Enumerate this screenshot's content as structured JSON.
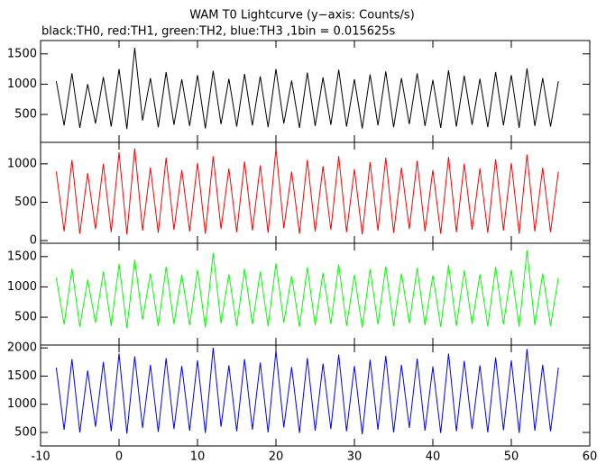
{
  "chart_data": [
    {
      "type": "line",
      "title": "WAM T0 Lightcurve (y−axis: Counts/s)",
      "subtitle": "black:TH0, red:TH1, green:TH2, blue:TH3 ,1bin = 0.015625s",
      "xlim": [
        -10,
        60
      ],
      "ylim": [
        40,
        1720
      ],
      "yticks": [
        500,
        1000,
        1500
      ],
      "x": [
        -8,
        -7,
        -6,
        -5,
        -4,
        -3,
        -2,
        -1,
        0,
        1,
        2,
        3,
        4,
        5,
        6,
        7,
        8,
        9,
        10,
        11,
        12,
        13,
        14,
        15,
        16,
        17,
        18,
        19,
        20,
        21,
        22,
        23,
        24,
        25,
        26,
        27,
        28,
        29,
        30,
        31,
        32,
        33,
        34,
        35,
        36,
        37,
        38,
        39,
        40,
        41,
        42,
        43,
        44,
        45,
        46,
        47,
        48,
        49,
        50,
        51,
        52,
        53,
        54,
        55,
        56
      ],
      "series": [
        {
          "name": "TH0",
          "color": "#000000",
          "values": [
            1050,
            320,
            1180,
            280,
            1000,
            350,
            1120,
            300,
            1250,
            260,
            1600,
            400,
            1100,
            290,
            1200,
            330,
            1080,
            310,
            1150,
            270,
            1220,
            340,
            1090,
            300,
            1170,
            320,
            1130,
            290,
            1250,
            350,
            1060,
            280,
            1190,
            310,
            1110,
            330,
            1240,
            300,
            1080,
            270,
            1160,
            320,
            1210,
            290,
            1100,
            340,
            1180,
            310,
            1070,
            280,
            1230,
            300,
            1140,
            330,
            1090,
            290,
            1200,
            320,
            1150,
            280,
            1260,
            310,
            1100,
            300,
            1050
          ]
        }
      ]
    },
    {
      "type": "line",
      "xlim": [
        -10,
        60
      ],
      "ylim": [
        -35,
        1280
      ],
      "yticks": [
        0,
        500,
        1000
      ],
      "x": [
        -8,
        -7,
        -6,
        -5,
        -4,
        -3,
        -2,
        -1,
        0,
        1,
        2,
        3,
        4,
        5,
        6,
        7,
        8,
        9,
        10,
        11,
        12,
        13,
        14,
        15,
        16,
        17,
        18,
        19,
        20,
        21,
        22,
        23,
        24,
        25,
        26,
        27,
        28,
        29,
        30,
        31,
        32,
        33,
        34,
        35,
        36,
        37,
        38,
        39,
        40,
        41,
        42,
        43,
        44,
        45,
        46,
        47,
        48,
        49,
        50,
        51,
        52,
        53,
        54,
        55,
        56
      ],
      "series": [
        {
          "name": "TH1",
          "color": "#ff0000",
          "values": [
            900,
            120,
            1050,
            90,
            880,
            150,
            1000,
            110,
            1150,
            80,
            1200,
            130,
            950,
            100,
            1080,
            140,
            920,
            120,
            1010,
            90,
            1100,
            150,
            940,
            110,
            1030,
            130,
            980,
            100,
            1200,
            160,
            900,
            90,
            1050,
            120,
            970,
            140,
            1100,
            110,
            930,
            80,
            1020,
            130,
            1080,
            100,
            950,
            150,
            1040,
            120,
            920,
            90,
            1090,
            110,
            1000,
            140,
            940,
            100,
            1060,
            130,
            1010,
            90,
            1120,
            120,
            950,
            110,
            900
          ]
        }
      ]
    },
    {
      "type": "line",
      "xlim": [
        -10,
        60
      ],
      "ylim": [
        40,
        1720
      ],
      "yticks": [
        500,
        1000,
        1500
      ],
      "x": [
        -8,
        -7,
        -6,
        -5,
        -4,
        -3,
        -2,
        -1,
        0,
        1,
        2,
        3,
        4,
        5,
        6,
        7,
        8,
        9,
        10,
        11,
        12,
        13,
        14,
        15,
        16,
        17,
        18,
        19,
        20,
        21,
        22,
        23,
        24,
        25,
        26,
        27,
        28,
        29,
        30,
        31,
        32,
        33,
        34,
        35,
        36,
        37,
        38,
        39,
        40,
        41,
        42,
        43,
        44,
        45,
        46,
        47,
        48,
        49,
        50,
        51,
        52,
        53,
        54,
        55,
        56
      ],
      "series": [
        {
          "name": "TH2",
          "color": "#00ff00",
          "values": [
            1150,
            380,
            1300,
            340,
            1120,
            410,
            1250,
            360,
            1380,
            320,
            1450,
            460,
            1220,
            350,
            1330,
            390,
            1200,
            370,
            1280,
            330,
            1560,
            400,
            1210,
            360,
            1300,
            380,
            1250,
            350,
            1390,
            410,
            1180,
            340,
            1320,
            370,
            1230,
            390,
            1370,
            360,
            1200,
            330,
            1290,
            380,
            1340,
            350,
            1220,
            400,
            1310,
            370,
            1190,
            340,
            1360,
            360,
            1270,
            390,
            1210,
            350,
            1330,
            380,
            1280,
            340,
            1600,
            370,
            1220,
            360,
            1150
          ]
        }
      ]
    },
    {
      "type": "line",
      "xlim": [
        -10,
        60
      ],
      "xticks": [
        -10,
        0,
        10,
        20,
        30,
        40,
        50,
        60
      ],
      "ylim": [
        260,
        2050
      ],
      "yticks": [
        500,
        1000,
        1500,
        2000
      ],
      "x": [
        -8,
        -7,
        -6,
        -5,
        -4,
        -3,
        -2,
        -1,
        0,
        1,
        2,
        3,
        4,
        5,
        6,
        7,
        8,
        9,
        10,
        11,
        12,
        13,
        14,
        15,
        16,
        17,
        18,
        19,
        20,
        21,
        22,
        23,
        24,
        25,
        26,
        27,
        28,
        29,
        30,
        31,
        32,
        33,
        34,
        35,
        36,
        37,
        38,
        39,
        40,
        41,
        42,
        43,
        44,
        45,
        46,
        47,
        48,
        49,
        50,
        51,
        52,
        53,
        54,
        55,
        56
      ],
      "series": [
        {
          "name": "TH3",
          "color": "#0000ff",
          "values": [
            1650,
            550,
            1800,
            500,
            1600,
            600,
            1750,
            520,
            1900,
            480,
            1850,
            580,
            1700,
            510,
            1820,
            560,
            1680,
            530,
            1780,
            490,
            2000,
            600,
            1690,
            520,
            1800,
            550,
            1740,
            500,
            1950,
            590,
            1660,
            490,
            1820,
            530,
            1720,
            560,
            1880,
            520,
            1680,
            470,
            1790,
            550,
            1860,
            500,
            1700,
            580,
            1810,
            530,
            1670,
            490,
            1900,
            520,
            1770,
            560,
            1690,
            500,
            1830,
            540,
            1780,
            490,
            1980,
            530,
            1700,
            520,
            1650
          ]
        }
      ]
    }
  ]
}
